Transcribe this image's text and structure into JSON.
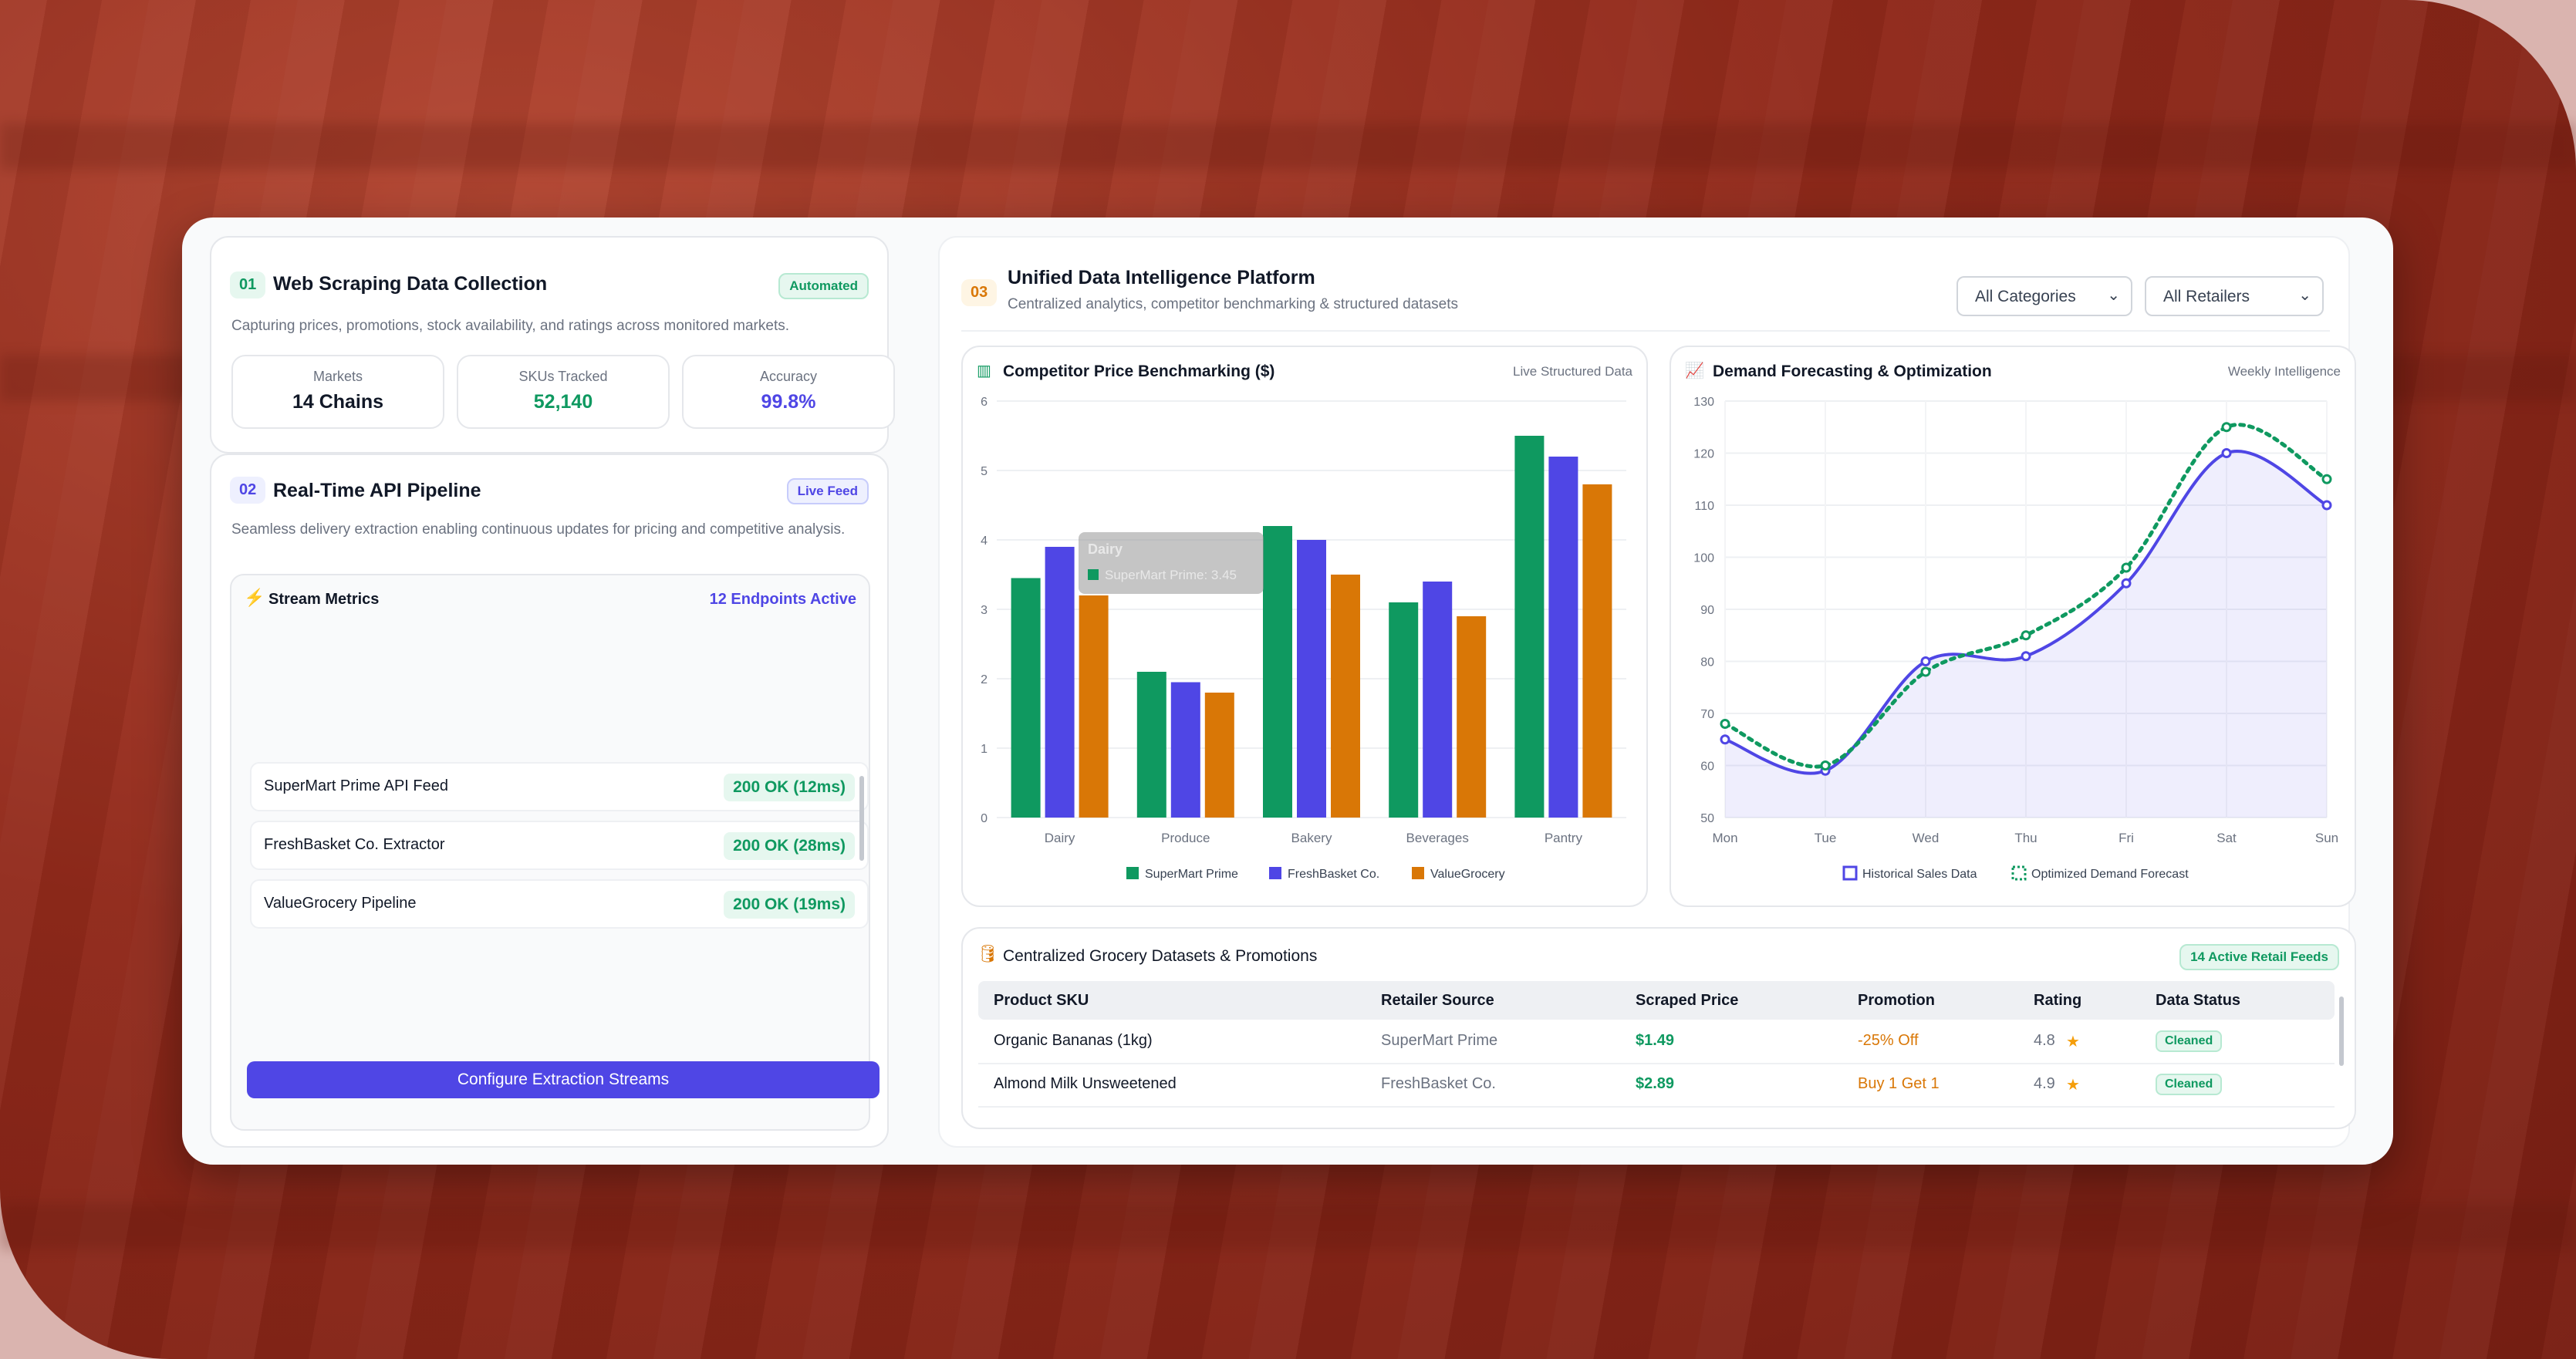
{
  "scraping": {
    "num": "01",
    "title": "Web Scraping Data Collection",
    "badge": "Automated",
    "desc": "Capturing prices, promotions, stock availability, and ratings across monitored markets.",
    "stats": [
      {
        "label": "Markets",
        "value": "14 Chains",
        "color": "#111827"
      },
      {
        "label": "SKUs Tracked",
        "value": "52,140",
        "color": "#0f9960"
      },
      {
        "label": "Accuracy",
        "value": "99.8%",
        "color": "#4f46e5"
      }
    ]
  },
  "api": {
    "num": "02",
    "title": "Real-Time API Pipeline",
    "badge": "Live Feed",
    "desc": "Seamless delivery extraction enabling continuous updates for pricing and competitive analysis.",
    "metrics_title": "Stream Metrics",
    "endpoints": "12 Endpoints Active",
    "feeds": [
      {
        "name": "SuperMart Prime API Feed",
        "status": "200 OK (12ms)"
      },
      {
        "name": "FreshBasket Co. Extractor",
        "status": "200 OK (28ms)"
      },
      {
        "name": "ValueGrocery Pipeline",
        "status": "200 OK (19ms)"
      }
    ],
    "button": "Configure Extraction Streams"
  },
  "platform": {
    "num": "03",
    "title": "Unified Data Intelligence Platform",
    "subtitle": "Centralized analytics, competitor benchmarking & structured datasets",
    "filter_category": "All Categories",
    "filter_retailer": "All Retailers"
  },
  "benchmark": {
    "title": "Competitor Price Benchmarking ($)",
    "tag": "Live Structured Data",
    "tooltip_title": "Dairy",
    "tooltip_value": "SuperMart Prime: 3.45"
  },
  "forecast": {
    "title": "Demand Forecasting & Optimization",
    "tag": "Weekly Intelligence"
  },
  "datasets": {
    "title": "Centralized Grocery Datasets & Promotions",
    "badge": "14 Active Retail Feeds",
    "headers": [
      "Product SKU",
      "Retailer Source",
      "Scraped Price",
      "Promotion",
      "Rating",
      "Data Status"
    ],
    "rows": [
      {
        "sku": "Organic Bananas (1kg)",
        "retailer": "SuperMart Prime",
        "price": "$1.49",
        "promo": "-25% Off",
        "rating": "4.8",
        "status": "Cleaned"
      },
      {
        "sku": "Almond Milk Unsweetened",
        "retailer": "FreshBasket Co.",
        "price": "$2.89",
        "promo": "Buy 1 Get 1",
        "rating": "4.9",
        "status": "Cleaned"
      }
    ]
  },
  "colors": {
    "green": "#0f9960",
    "blue": "#4f46e5",
    "orange": "#d97706"
  },
  "chart_data": [
    {
      "type": "bar",
      "title": "Competitor Price Benchmarking ($)",
      "categories": [
        "Dairy",
        "Produce",
        "Bakery",
        "Beverages",
        "Pantry"
      ],
      "series": [
        {
          "name": "SuperMart Prime",
          "color": "#0f9960",
          "values": [
            3.45,
            2.1,
            4.2,
            3.1,
            5.5
          ]
        },
        {
          "name": "FreshBasket Co.",
          "color": "#4f46e5",
          "values": [
            3.9,
            1.95,
            4.0,
            3.4,
            5.2
          ]
        },
        {
          "name": "ValueGrocery",
          "color": "#d97706",
          "values": [
            3.2,
            1.8,
            3.5,
            2.9,
            4.8
          ]
        }
      ],
      "ylim": [
        0,
        6
      ],
      "yticks": [
        "0",
        "1",
        "2",
        "3",
        "4",
        "5",
        "6"
      ],
      "legend": "bottom",
      "grid": true
    },
    {
      "type": "line",
      "title": "Demand Forecasting & Optimization",
      "categories": [
        "Mon",
        "Tue",
        "Wed",
        "Thu",
        "Fri",
        "Sat",
        "Sun"
      ],
      "series": [
        {
          "name": "Historical Sales Data",
          "color": "#4f46e5",
          "values": [
            65,
            59,
            80,
            81,
            95,
            120,
            110
          ],
          "area": true
        },
        {
          "name": "Optimized Demand Forecast",
          "color": "#0f9960",
          "values": [
            68,
            60,
            78,
            85,
            98,
            125,
            115
          ],
          "dashed": true
        }
      ],
      "ylim": [
        50,
        130
      ],
      "yticks": [
        "50",
        "60",
        "70",
        "80",
        "90",
        "100",
        "110",
        "120",
        "130"
      ],
      "legend": "bottom",
      "grid": true
    }
  ]
}
